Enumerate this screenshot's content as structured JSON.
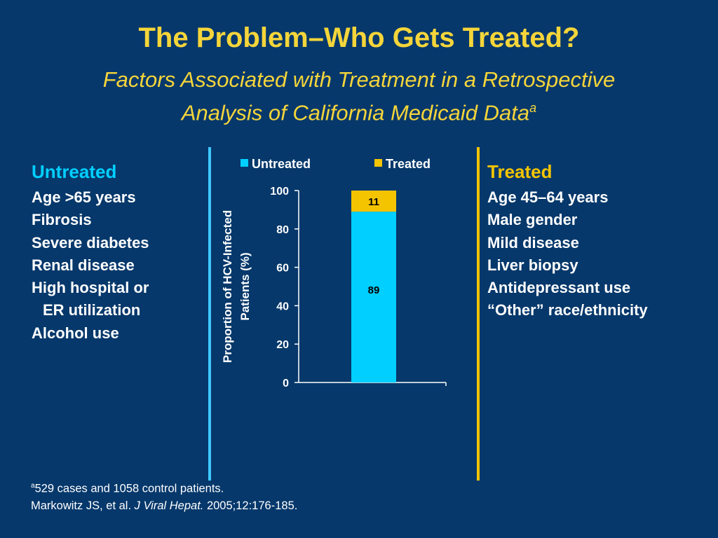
{
  "slide": {
    "title": "The Problem–Who Gets Treated?",
    "subtitle_line1": "Factors Associated with Treatment in a Retrospective",
    "subtitle_line2": "Analysis of California Medicaid Data",
    "subtitle_sup": "a"
  },
  "untreated": {
    "heading": "Untreated",
    "heading_color": "#00cfff",
    "items": [
      "Age >65 years",
      "Fibrosis",
      "Severe diabetes",
      "Renal disease",
      "High hospital or",
      "ER utilization",
      "Alcohol use"
    ]
  },
  "treated": {
    "heading": "Treated",
    "heading_color": "#f5c400",
    "items": [
      "Age 45–64 years",
      "Male gender",
      "Mild disease",
      "Liver biopsy",
      "Antidepressant use",
      "“Other” race/ethnicity"
    ]
  },
  "colors": {
    "background": "#06386b",
    "title": "#f5d53a",
    "untreated": "#00cfff",
    "treated": "#f5c400",
    "divider_left": "#3fc8ff",
    "divider_right": "#f5c400"
  },
  "footnote": {
    "sup": "a",
    "line1": "529 cases and 1058 control patients.",
    "line2_authors": "Markowitz JS, et al. ",
    "line2_journal": "J Viral Hepat.",
    "line2_rest": " 2005;12:176-185."
  },
  "chart_data": {
    "type": "bar",
    "stacked": true,
    "categories": [
      ""
    ],
    "series": [
      {
        "name": "Untreated",
        "values": [
          89
        ],
        "color": "#00cfff"
      },
      {
        "name": "Treated",
        "values": [
          11
        ],
        "color": "#f5c400"
      }
    ],
    "ylabel_line1": "Proportion of HCV-Infected",
    "ylabel_line2": "Patients (%)",
    "ylim": [
      0,
      100
    ],
    "yticks": [
      0,
      20,
      40,
      60,
      80,
      100
    ],
    "legend_position": "top",
    "data_labels": [
      "89",
      "11"
    ]
  }
}
